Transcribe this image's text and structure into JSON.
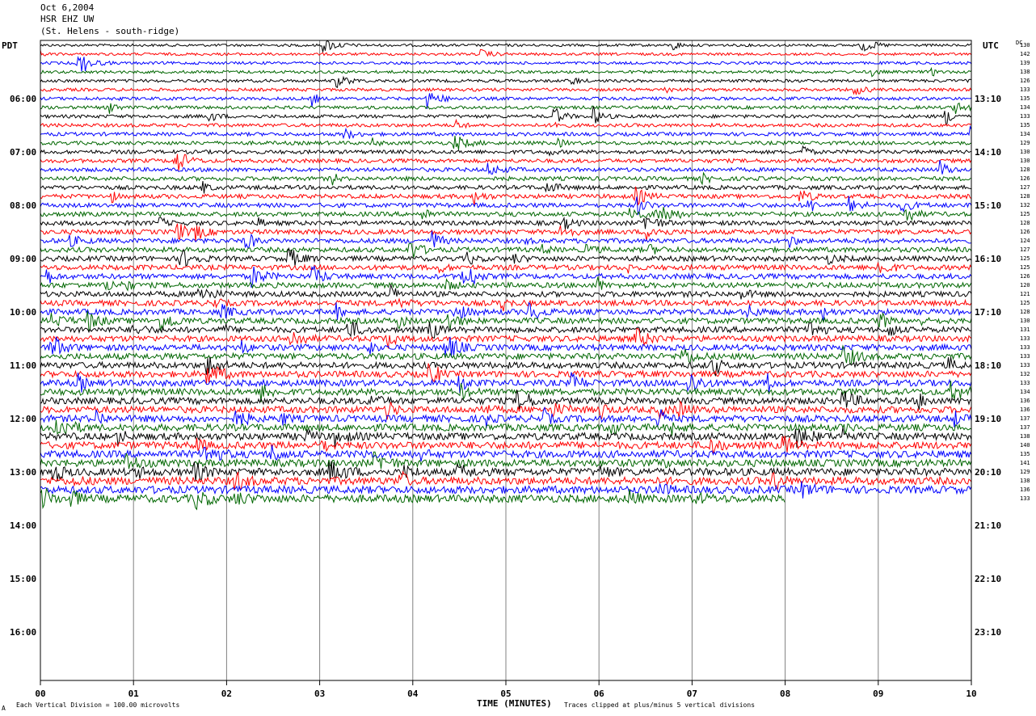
{
  "header": {
    "date": "Oct 6,2004",
    "station": "HSR EHZ UW",
    "location": "(St. Helens - south-ridge)"
  },
  "left_axis_title": "PDT",
  "right_axis_title": "UTC",
  "dc_label": "DC",
  "pdt_labels": [
    "06:00",
    "07:00",
    "08:00",
    "09:00",
    "10:00",
    "11:00",
    "12:00",
    "13:00",
    "14:00",
    "15:00",
    "16:00"
  ],
  "utc_labels": [
    "13:10",
    "14:10",
    "15:10",
    "16:10",
    "17:10",
    "18:10",
    "19:10",
    "20:10",
    "21:10",
    "22:10",
    "23:10"
  ],
  "dc_offsets": [
    "130",
    "142",
    "139",
    "138",
    "126",
    "133",
    "135",
    "134",
    "133",
    "135",
    "134",
    "129",
    "130",
    "130",
    "128",
    "126",
    "127",
    "128",
    "132",
    "125",
    "128",
    "126",
    "124",
    "127",
    "125",
    "125",
    "126",
    "120",
    "121",
    "125",
    "128",
    "130",
    "131",
    "133",
    "133",
    "133",
    "133",
    "132",
    "133",
    "134",
    "136",
    "136",
    "137",
    "137",
    "138",
    "140",
    "135",
    "141",
    "129",
    "138",
    "136",
    "133"
  ],
  "x_ticks": [
    "00",
    "01",
    "02",
    "03",
    "04",
    "05",
    "06",
    "07",
    "08",
    "09",
    "10"
  ],
  "x_label": "TIME (MINUTES)",
  "footer": {
    "scale": "Each Vertical Division =  100.00 microvolts",
    "clip": "Traces clipped at plus/minus 5 vertical divisions",
    "marker": "A"
  },
  "colors": {
    "trace_cycle": [
      "#000000",
      "#ff0000",
      "#0000ff",
      "#006600"
    ],
    "grid": "#808080"
  },
  "chart_data": {
    "type": "line",
    "title": "HSR EHZ UW",
    "xlabel": "TIME (MINUTES)",
    "x_range": [
      0,
      10
    ],
    "traces": 52,
    "minutes_per_trace": 10,
    "start_pdt": "05:10",
    "last_trace_end_minute": 8.0,
    "scale_microvolts_per_division": 100.0,
    "clip_divisions": 5
  }
}
